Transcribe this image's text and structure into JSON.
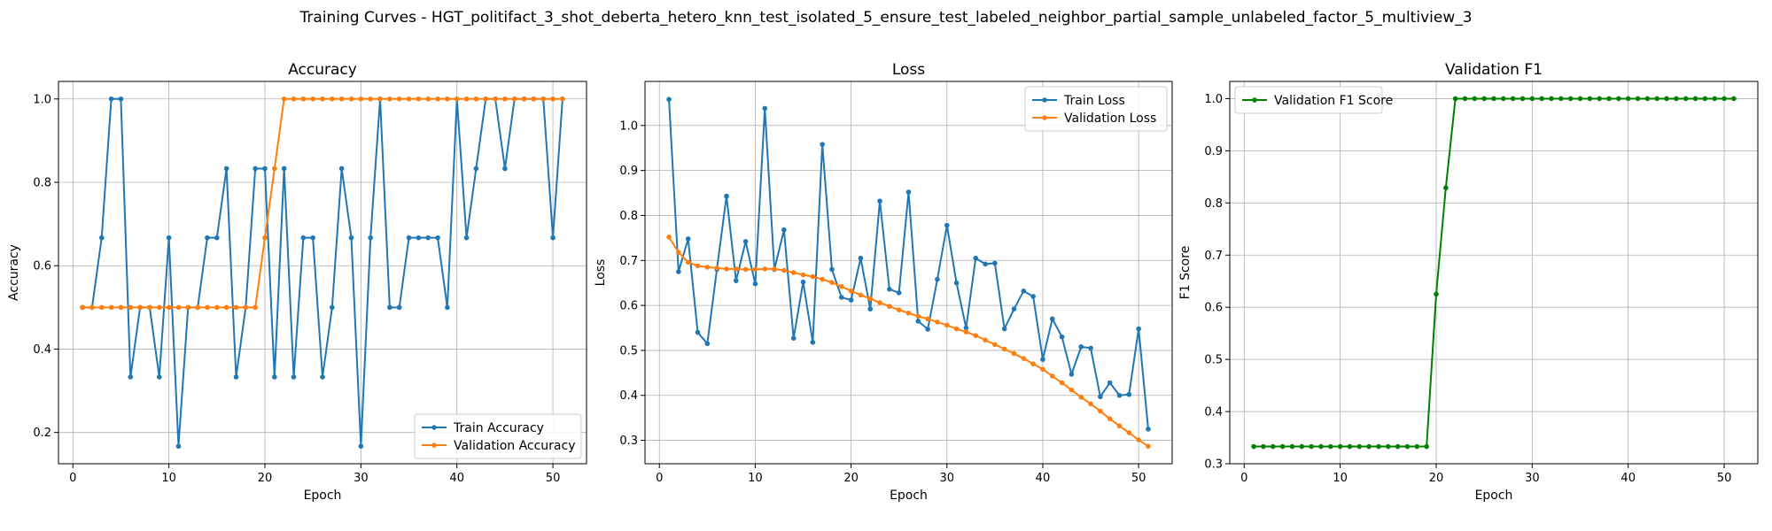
{
  "figure": {
    "suptitle": "Training Curves - HGT_politifact_3_shot_deberta_hetero_knn_test_isolated_5_ensure_test_labeled_neighbor_partial_sample_unlabeled_factor_5_multiview_3"
  },
  "chart_data": [
    {
      "type": "line",
      "title": "Accuracy",
      "xlabel": "Epoch",
      "ylabel": "Accuracy",
      "xlim": [
        -1.5,
        53.5
      ],
      "ylim": [
        0.125,
        1.042
      ],
      "xticks": [
        0,
        10,
        20,
        30,
        40,
        50
      ],
      "yticks": [
        0.2,
        0.4,
        0.6,
        0.8,
        1.0
      ],
      "xtick_labels": [
        "0",
        "10",
        "20",
        "30",
        "40",
        "50"
      ],
      "ytick_labels": [
        "0.2",
        "0.4",
        "0.6",
        "0.8",
        "1.0"
      ],
      "grid": true,
      "legend_position": "lower-right",
      "x": [
        1,
        2,
        3,
        4,
        5,
        6,
        7,
        8,
        9,
        10,
        11,
        12,
        13,
        14,
        15,
        16,
        17,
        18,
        19,
        20,
        21,
        22,
        23,
        24,
        25,
        26,
        27,
        28,
        29,
        30,
        31,
        32,
        33,
        34,
        35,
        36,
        37,
        38,
        39,
        40,
        41,
        42,
        43,
        44,
        45,
        46,
        47,
        48,
        49,
        50,
        51
      ],
      "series": [
        {
          "name": "Train Accuracy",
          "color": "#1f77b4",
          "values": [
            0.5,
            0.5,
            0.667,
            1.0,
            1.0,
            0.333,
            0.5,
            0.5,
            0.333,
            0.667,
            0.167,
            0.5,
            0.5,
            0.667,
            0.667,
            0.833,
            0.333,
            0.5,
            0.833,
            0.833,
            0.333,
            0.833,
            0.333,
            0.667,
            0.667,
            0.333,
            0.5,
            0.833,
            0.667,
            0.167,
            0.667,
            1.0,
            0.5,
            0.5,
            0.667,
            0.667,
            0.667,
            0.667,
            0.5,
            1.0,
            0.667,
            0.833,
            1.0,
            1.0,
            0.833,
            1.0,
            1.0,
            1.0,
            1.0,
            0.667,
            1.0
          ]
        },
        {
          "name": "Validation Accuracy",
          "color": "#ff7f0e",
          "values": [
            0.5,
            0.5,
            0.5,
            0.5,
            0.5,
            0.5,
            0.5,
            0.5,
            0.5,
            0.5,
            0.5,
            0.5,
            0.5,
            0.5,
            0.5,
            0.5,
            0.5,
            0.5,
            0.5,
            0.667,
            0.833,
            1.0,
            1.0,
            1.0,
            1.0,
            1.0,
            1.0,
            1.0,
            1.0,
            1.0,
            1.0,
            1.0,
            1.0,
            1.0,
            1.0,
            1.0,
            1.0,
            1.0,
            1.0,
            1.0,
            1.0,
            1.0,
            1.0,
            1.0,
            1.0,
            1.0,
            1.0,
            1.0,
            1.0,
            1.0,
            1.0
          ]
        }
      ]
    },
    {
      "type": "line",
      "title": "Loss",
      "xlabel": "Epoch",
      "ylabel": "Loss",
      "xlim": [
        -1.5,
        53.5
      ],
      "ylim": [
        0.248,
        1.098
      ],
      "xticks": [
        0,
        10,
        20,
        30,
        40,
        50
      ],
      "yticks": [
        0.3,
        0.4,
        0.5,
        0.6,
        0.7,
        0.8,
        0.9,
        1.0
      ],
      "xtick_labels": [
        "0",
        "10",
        "20",
        "30",
        "40",
        "50"
      ],
      "ytick_labels": [
        "0.3",
        "0.4",
        "0.5",
        "0.6",
        "0.7",
        "0.8",
        "0.9",
        "1.0"
      ],
      "grid": true,
      "legend_position": "upper-right",
      "x": [
        1,
        2,
        3,
        4,
        5,
        6,
        7,
        8,
        9,
        10,
        11,
        12,
        13,
        14,
        15,
        16,
        17,
        18,
        19,
        20,
        21,
        22,
        23,
        24,
        25,
        26,
        27,
        28,
        29,
        30,
        31,
        32,
        33,
        34,
        35,
        36,
        37,
        38,
        39,
        40,
        41,
        42,
        43,
        44,
        45,
        46,
        47,
        48,
        49,
        50,
        51
      ],
      "series": [
        {
          "name": "Train Loss",
          "color": "#1f77b4",
          "values": [
            1.058,
            0.675,
            0.748,
            0.54,
            0.515,
            0.68,
            0.843,
            0.655,
            0.742,
            0.648,
            1.038,
            0.68,
            0.768,
            0.527,
            0.652,
            0.518,
            0.958,
            0.68,
            0.618,
            0.612,
            0.705,
            0.592,
            0.832,
            0.636,
            0.628,
            0.852,
            0.565,
            0.547,
            0.658,
            0.778,
            0.65,
            0.55,
            0.705,
            0.692,
            0.694,
            0.548,
            0.592,
            0.632,
            0.62,
            0.48,
            0.57,
            0.53,
            0.447,
            0.508,
            0.505,
            0.397,
            0.428,
            0.4,
            0.402,
            0.548,
            0.325
          ]
        },
        {
          "name": "Validation Loss",
          "color": "#ff7f0e",
          "values": [
            0.752,
            0.718,
            0.696,
            0.688,
            0.685,
            0.683,
            0.681,
            0.681,
            0.68,
            0.68,
            0.681,
            0.681,
            0.678,
            0.673,
            0.668,
            0.664,
            0.658,
            0.651,
            0.642,
            0.632,
            0.623,
            0.615,
            0.606,
            0.598,
            0.59,
            0.583,
            0.576,
            0.57,
            0.563,
            0.556,
            0.548,
            0.541,
            0.533,
            0.523,
            0.513,
            0.503,
            0.493,
            0.482,
            0.47,
            0.458,
            0.443,
            0.428,
            0.412,
            0.396,
            0.381,
            0.365,
            0.348,
            0.332,
            0.317,
            0.301,
            0.287
          ]
        }
      ]
    },
    {
      "type": "line",
      "title": "Validation F1",
      "xlabel": "Epoch",
      "ylabel": "F1 Score",
      "xlim": [
        -1.5,
        53.5
      ],
      "ylim": [
        0.3,
        1.033
      ],
      "xticks": [
        0,
        10,
        20,
        30,
        40,
        50
      ],
      "yticks": [
        0.3,
        0.4,
        0.5,
        0.6,
        0.7,
        0.8,
        0.9,
        1.0
      ],
      "xtick_labels": [
        "0",
        "10",
        "20",
        "30",
        "40",
        "50"
      ],
      "ytick_labels": [
        "0.3",
        "0.4",
        "0.5",
        "0.6",
        "0.7",
        "0.8",
        "0.9",
        "1.0"
      ],
      "grid": true,
      "legend_position": "upper-left",
      "x": [
        1,
        2,
        3,
        4,
        5,
        6,
        7,
        8,
        9,
        10,
        11,
        12,
        13,
        14,
        15,
        16,
        17,
        18,
        19,
        20,
        21,
        22,
        23,
        24,
        25,
        26,
        27,
        28,
        29,
        30,
        31,
        32,
        33,
        34,
        35,
        36,
        37,
        38,
        39,
        40,
        41,
        42,
        43,
        44,
        45,
        46,
        47,
        48,
        49,
        50,
        51
      ],
      "series": [
        {
          "name": "Validation F1 Score",
          "color": "#008000",
          "values": [
            0.333,
            0.333,
            0.333,
            0.333,
            0.333,
            0.333,
            0.333,
            0.333,
            0.333,
            0.333,
            0.333,
            0.333,
            0.333,
            0.333,
            0.333,
            0.333,
            0.333,
            0.333,
            0.333,
            0.625,
            0.829,
            1.0,
            1.0,
            1.0,
            1.0,
            1.0,
            1.0,
            1.0,
            1.0,
            1.0,
            1.0,
            1.0,
            1.0,
            1.0,
            1.0,
            1.0,
            1.0,
            1.0,
            1.0,
            1.0,
            1.0,
            1.0,
            1.0,
            1.0,
            1.0,
            1.0,
            1.0,
            1.0,
            1.0,
            1.0,
            1.0
          ]
        }
      ]
    }
  ]
}
